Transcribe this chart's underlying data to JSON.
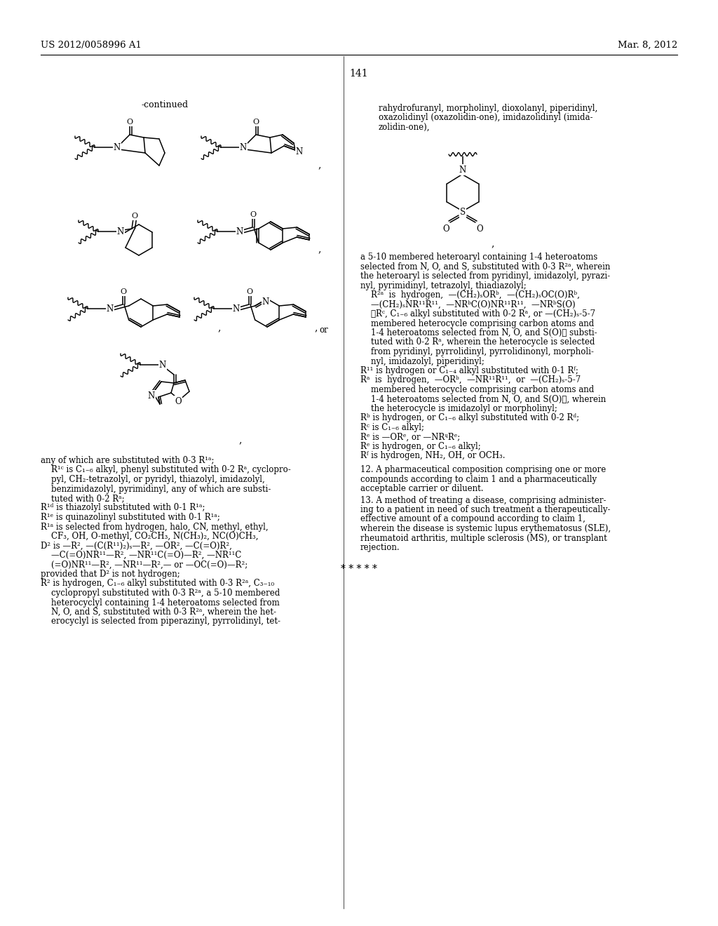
{
  "header_left": "US 2012/0058996 A1",
  "header_right": "Mar. 8, 2012",
  "page_number": "141",
  "background_color": "#ffffff",
  "figsize": [
    10.24,
    13.2
  ],
  "dpi": 100
}
